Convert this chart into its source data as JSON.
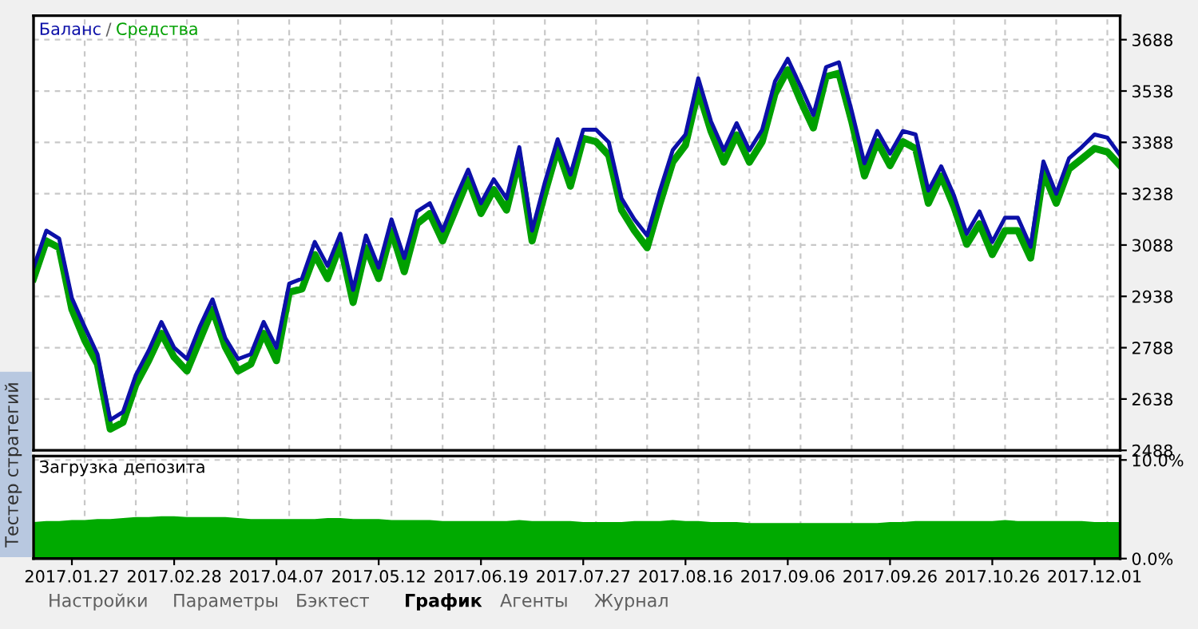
{
  "chart_data": [
    {
      "type": "line",
      "legend": "top left",
      "grid": true,
      "tick_labels": "y",
      "categories": [
        null,
        null,
        null,
        "2017.01.27",
        null,
        null,
        null,
        null,
        null,
        null,
        null,
        "2017.02.28",
        null,
        null,
        null,
        null,
        null,
        null,
        null,
        "2017.04.07",
        null,
        null,
        null,
        null,
        null,
        null,
        null,
        "2017.05.12",
        null,
        null,
        null,
        null,
        null,
        null,
        null,
        "2017.06.19",
        null,
        null,
        null,
        null,
        null,
        null,
        null,
        "2017.07.27",
        null,
        null,
        null,
        null,
        null,
        null,
        null,
        "2017.08.16",
        null,
        null,
        null,
        null,
        null,
        null,
        null,
        "2017.09.06",
        null,
        null,
        null,
        null,
        null,
        null,
        null,
        "2017.09.26",
        null,
        null,
        null,
        null,
        null,
        null,
        null,
        "2017.10.26",
        null,
        null,
        null,
        null,
        null,
        null,
        null,
        "2017.12.01",
        null,
        null
      ],
      "series": [
        {
          "name": "Средства",
          "color": "#00a000",
          "values": [
            2990,
            3100,
            3080,
            2900,
            2810,
            2740,
            2550,
            2570,
            2680,
            2750,
            2830,
            2760,
            2720,
            2810,
            2900,
            2790,
            2720,
            2740,
            2830,
            2750,
            2950,
            2960,
            3060,
            2990,
            3090,
            2920,
            3080,
            2990,
            3130,
            3010,
            3150,
            3180,
            3100,
            3190,
            3280,
            3180,
            3250,
            3190,
            3340,
            3100,
            3240,
            3370,
            3260,
            3400,
            3390,
            3350,
            3190,
            3130,
            3080,
            3210,
            3330,
            3380,
            3540,
            3420,
            3330,
            3410,
            3330,
            3390,
            3530,
            3600,
            3510,
            3430,
            3580,
            3590,
            3450,
            3290,
            3390,
            3320,
            3390,
            3370,
            3210,
            3290,
            3200,
            3090,
            3150,
            3060,
            3130,
            3130,
            3050,
            3300,
            3210,
            3310,
            3340,
            3370,
            3360,
            3320
          ]
        },
        {
          "name": "Баланс",
          "color": "#0c10a8",
          "values": [
            3022,
            3130,
            3107,
            2933,
            2849,
            2769,
            2577,
            2600,
            2708,
            2779,
            2863,
            2788,
            2755,
            2849,
            2929,
            2816,
            2755,
            2769,
            2863,
            2788,
            2975,
            2990,
            3097,
            3027,
            3121,
            2957,
            3116,
            3022,
            3163,
            3050,
            3186,
            3210,
            3130,
            3224,
            3308,
            3210,
            3280,
            3224,
            3374,
            3130,
            3271,
            3397,
            3294,
            3425,
            3425,
            3388,
            3224,
            3163,
            3116,
            3247,
            3365,
            3411,
            3575,
            3449,
            3365,
            3444,
            3365,
            3425,
            3566,
            3632,
            3552,
            3468,
            3608,
            3622,
            3480,
            3327,
            3421,
            3355,
            3421,
            3411,
            3247,
            3318,
            3233,
            3121,
            3186,
            3097,
            3168,
            3168,
            3083,
            3332,
            3238,
            3341,
            3374,
            3411,
            3402,
            3350
          ]
        }
      ],
      "ylim": [
        2488,
        3758
      ],
      "yticks": [
        2488,
        2638,
        2788,
        2938,
        3088,
        3238,
        3388,
        3538,
        3688
      ],
      "annotations": [
        "/"
      ]
    },
    {
      "type": "area",
      "title": "Загрузка депозита",
      "grid": true,
      "categories": [
        null,
        null,
        null,
        "2017.01.27",
        null,
        null,
        null,
        null,
        null,
        null,
        null,
        "2017.02.28",
        null,
        null,
        null,
        null,
        null,
        null,
        null,
        "2017.04.07",
        null,
        null,
        null,
        null,
        null,
        null,
        null,
        "2017.05.12",
        null,
        null,
        null,
        null,
        null,
        null,
        null,
        "2017.06.19",
        null,
        null,
        null,
        null,
        null,
        null,
        null,
        "2017.07.27",
        null,
        null,
        null,
        null,
        null,
        null,
        null,
        "2017.08.16",
        null,
        null,
        null,
        null,
        null,
        null,
        null,
        "2017.09.06",
        null,
        null,
        null,
        null,
        null,
        null,
        null,
        "2017.09.26",
        null,
        null,
        null,
        null,
        null,
        null,
        null,
        "2017.10.26",
        null,
        null,
        null,
        null,
        null,
        null,
        null,
        "2017.12.01",
        null,
        null
      ],
      "values": [
        3.7,
        3.8,
        3.8,
        3.9,
        3.9,
        4.0,
        4.0,
        4.1,
        4.2,
        4.2,
        4.3,
        4.3,
        4.2,
        4.2,
        4.2,
        4.2,
        4.1,
        4.0,
        4.0,
        4.0,
        4.0,
        4.0,
        4.0,
        4.1,
        4.1,
        4.0,
        4.0,
        4.0,
        3.9,
        3.9,
        3.9,
        3.9,
        3.8,
        3.8,
        3.8,
        3.8,
        3.8,
        3.8,
        3.9,
        3.8,
        3.8,
        3.8,
        3.8,
        3.7,
        3.7,
        3.7,
        3.7,
        3.8,
        3.8,
        3.8,
        3.9,
        3.8,
        3.8,
        3.7,
        3.7,
        3.7,
        3.6,
        3.6,
        3.6,
        3.6,
        3.6,
        3.6,
        3.6,
        3.6,
        3.6,
        3.6,
        3.6,
        3.7,
        3.7,
        3.8,
        3.8,
        3.8,
        3.8,
        3.8,
        3.8,
        3.8,
        3.9,
        3.8,
        3.8,
        3.8,
        3.8,
        3.8,
        3.8,
        3.7,
        3.7,
        3.7
      ],
      "color": "#00aa00",
      "ylim": [
        0,
        10.4
      ],
      "yticks": [
        {
          "value": 0,
          "label": "0.0%"
        },
        {
          "value": 10,
          "label": "10.0%"
        }
      ],
      "annotations": [
        "Тестер стратегий",
        "Настройки",
        "Параметры",
        "Бэктест",
        "График",
        "Агенты",
        "Журнал"
      ]
    }
  ]
}
